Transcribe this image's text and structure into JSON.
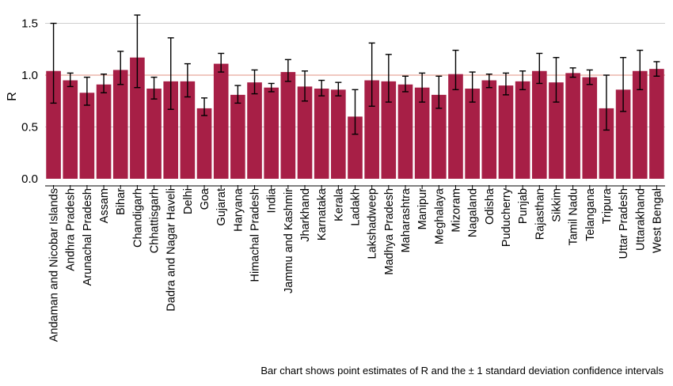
{
  "caption": "Bar chart shows point estimates of R and the ± 1 standard deviation confidence intervals",
  "colors": {
    "bar": "#a71f46",
    "grid": "#cfcfcf",
    "reference_line": "#e8a79a",
    "error_bar": "#000000"
  },
  "chart_data": {
    "type": "bar",
    "ylabel": "R",
    "xlabel": "",
    "ylim": [
      0,
      1.6
    ],
    "yticks": [
      "0.0",
      "0.5",
      "1.0",
      "1.5"
    ],
    "grid": "horizontal",
    "reference_line": 1.0,
    "categories": [
      "Andaman and Nicobar Islands",
      "Andhra Pradesh",
      "Arunachal Pradesh",
      "Assam",
      "Bihar",
      "Chandigarh",
      "Chhattisgarh",
      "Dadra and Nagar Haveli",
      "Delhi",
      "Goa",
      "Gujarat",
      "Haryana",
      "Himachal Pradesh",
      "India",
      "Jammu and Kashmir",
      "Jharkhand",
      "Karnataka",
      "Kerala",
      "Ladakh",
      "Lakshadweep",
      "Madhya Pradesh",
      "Maharashtra",
      "Manipur",
      "Meghalaya",
      "Mizoram",
      "Nagaland",
      "Odisha",
      "Puducherry",
      "Punjab",
      "Rajasthan",
      "Sikkim",
      "Tamil Nadu",
      "Telangana",
      "Tripura",
      "Uttar Pradesh",
      "Uttarakhand",
      "West Bengal"
    ],
    "values": [
      1.04,
      0.95,
      0.83,
      0.91,
      1.05,
      1.17,
      0.87,
      0.94,
      0.94,
      0.68,
      1.11,
      0.81,
      0.93,
      0.88,
      1.03,
      0.89,
      0.87,
      0.86,
      0.6,
      0.95,
      0.94,
      0.91,
      0.88,
      0.81,
      1.01,
      0.87,
      0.95,
      0.9,
      0.94,
      1.04,
      0.93,
      1.02,
      0.98,
      0.68,
      0.86,
      1.04,
      1.06
    ],
    "error_low": [
      0.73,
      0.89,
      0.71,
      0.83,
      0.91,
      0.88,
      0.77,
      0.67,
      0.79,
      0.61,
      1.03,
      0.73,
      0.82,
      0.84,
      0.94,
      0.75,
      0.8,
      0.8,
      0.43,
      0.7,
      0.74,
      0.84,
      0.74,
      0.68,
      0.86,
      0.74,
      0.88,
      0.81,
      0.86,
      0.92,
      0.74,
      0.98,
      0.91,
      0.47,
      0.65,
      0.86,
      0.99
    ],
    "error_high": [
      1.5,
      1.02,
      0.98,
      1.01,
      1.23,
      1.58,
      0.98,
      1.36,
      1.11,
      0.78,
      1.21,
      0.9,
      1.05,
      0.92,
      1.15,
      1.04,
      0.95,
      0.93,
      0.86,
      1.31,
      1.2,
      0.99,
      1.02,
      0.99,
      1.24,
      1.03,
      1.01,
      1.02,
      1.04,
      1.21,
      1.17,
      1.07,
      1.05,
      1.0,
      1.17,
      1.24,
      1.13
    ]
  }
}
